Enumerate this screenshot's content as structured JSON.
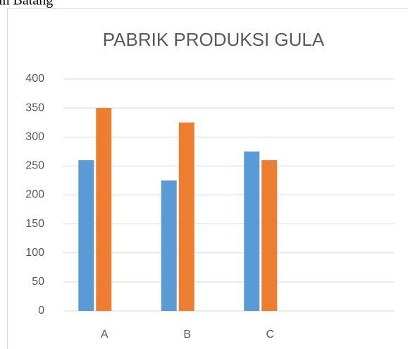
{
  "caption": "in Batang",
  "chart_data": {
    "type": "bar",
    "title": "PABRIK PRODUKSI GULA",
    "categories": [
      "A",
      "B",
      "C",
      null
    ],
    "series": [
      {
        "color": "#5b9bd5",
        "values": [
          260,
          225,
          275,
          null
        ]
      },
      {
        "color": "#ed7d31",
        "values": [
          350,
          325,
          260,
          null
        ]
      }
    ],
    "ylim": [
      0,
      400
    ],
    "yticks": [
      0,
      50,
      100,
      150,
      200,
      250,
      300,
      350,
      400
    ],
    "grid": true
  }
}
